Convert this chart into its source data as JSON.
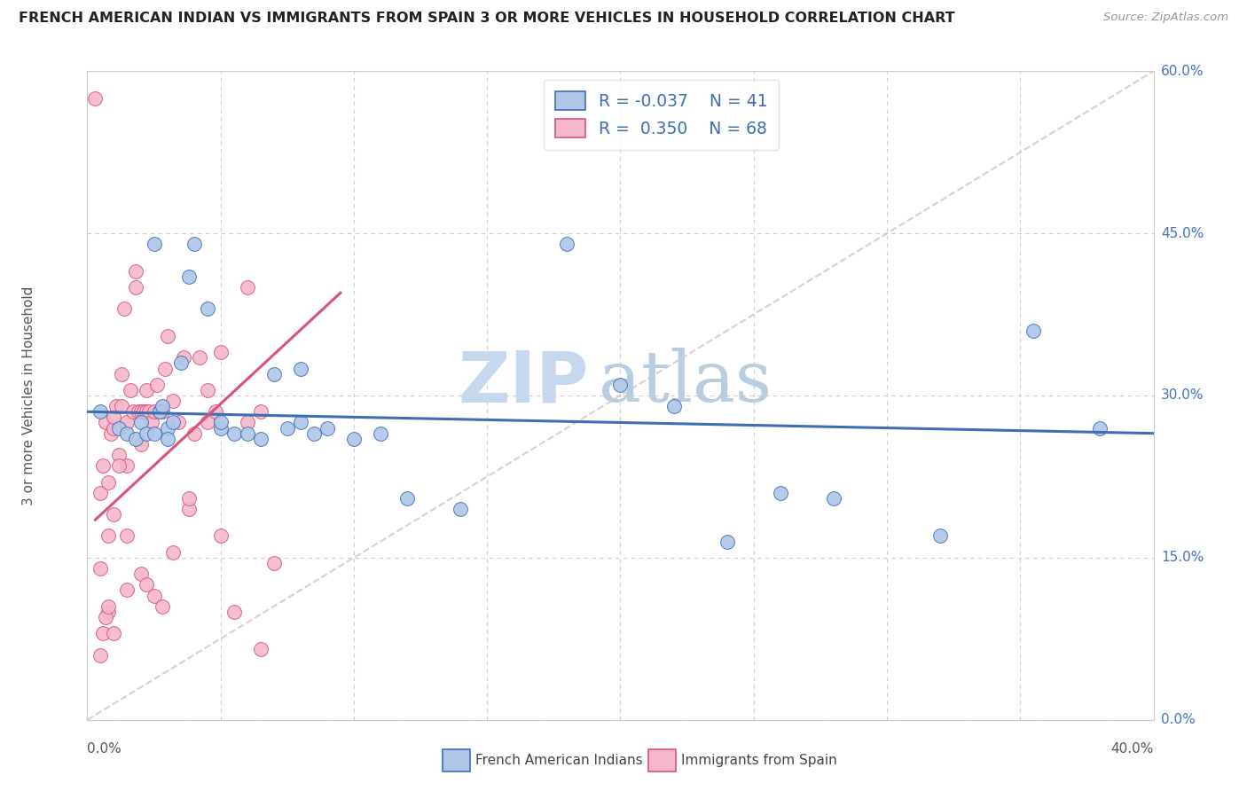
{
  "title": "FRENCH AMERICAN INDIAN VS IMMIGRANTS FROM SPAIN 3 OR MORE VEHICLES IN HOUSEHOLD CORRELATION CHART",
  "source": "Source: ZipAtlas.com",
  "ylabel_label": "3 or more Vehicles in Household",
  "legend_label1": "French American Indians",
  "legend_label2": "Immigrants from Spain",
  "R1": "-0.037",
  "N1": "41",
  "R2": "0.350",
  "N2": "68",
  "color1": "#aec6e8",
  "color2": "#f4b8ca",
  "line1_color": "#3d6eb5",
  "line2_color": "#d9527a",
  "diagonal_color": "#d8bfc8",
  "watermark_zip": "ZIP",
  "watermark_atlas": "atlas",
  "xmin": 0.0,
  "xmax": 0.4,
  "ymin": 0.0,
  "ymax": 0.6,
  "blue_points_x": [
    0.005,
    0.012,
    0.015,
    0.018,
    0.02,
    0.022,
    0.025,
    0.027,
    0.028,
    0.03,
    0.032,
    0.035,
    0.038,
    0.04,
    0.045,
    0.05,
    0.055,
    0.06,
    0.065,
    0.07,
    0.075,
    0.08,
    0.085,
    0.09,
    0.1,
    0.11,
    0.12,
    0.14,
    0.18,
    0.2,
    0.22,
    0.24,
    0.26,
    0.28,
    0.32,
    0.355,
    0.38,
    0.025,
    0.03,
    0.05,
    0.08
  ],
  "blue_points_y": [
    0.285,
    0.27,
    0.265,
    0.26,
    0.275,
    0.265,
    0.265,
    0.285,
    0.29,
    0.27,
    0.275,
    0.33,
    0.41,
    0.44,
    0.38,
    0.27,
    0.265,
    0.265,
    0.26,
    0.32,
    0.27,
    0.325,
    0.265,
    0.27,
    0.26,
    0.265,
    0.205,
    0.195,
    0.44,
    0.31,
    0.29,
    0.165,
    0.21,
    0.205,
    0.17,
    0.36,
    0.27,
    0.44,
    0.26,
    0.275,
    0.275
  ],
  "pink_points_x": [
    0.003,
    0.005,
    0.005,
    0.006,
    0.007,
    0.008,
    0.008,
    0.009,
    0.01,
    0.01,
    0.011,
    0.012,
    0.013,
    0.013,
    0.014,
    0.015,
    0.015,
    0.016,
    0.017,
    0.018,
    0.018,
    0.019,
    0.02,
    0.02,
    0.021,
    0.022,
    0.022,
    0.023,
    0.024,
    0.025,
    0.026,
    0.027,
    0.028,
    0.029,
    0.03,
    0.032,
    0.034,
    0.036,
    0.038,
    0.04,
    0.042,
    0.045,
    0.048,
    0.05,
    0.055,
    0.06,
    0.065,
    0.07,
    0.008,
    0.01,
    0.012,
    0.015,
    0.015,
    0.02,
    0.022,
    0.025,
    0.028,
    0.032,
    0.038,
    0.045,
    0.05,
    0.06,
    0.065,
    0.005,
    0.006,
    0.007,
    0.008,
    0.01
  ],
  "pink_points_y": [
    0.575,
    0.14,
    0.21,
    0.235,
    0.275,
    0.22,
    0.17,
    0.265,
    0.27,
    0.28,
    0.29,
    0.245,
    0.32,
    0.29,
    0.38,
    0.275,
    0.235,
    0.305,
    0.285,
    0.415,
    0.4,
    0.285,
    0.285,
    0.255,
    0.285,
    0.305,
    0.285,
    0.285,
    0.275,
    0.285,
    0.31,
    0.285,
    0.285,
    0.325,
    0.355,
    0.295,
    0.275,
    0.335,
    0.195,
    0.265,
    0.335,
    0.275,
    0.285,
    0.17,
    0.1,
    0.275,
    0.285,
    0.145,
    0.1,
    0.19,
    0.235,
    0.17,
    0.12,
    0.135,
    0.125,
    0.115,
    0.105,
    0.155,
    0.205,
    0.305,
    0.34,
    0.4,
    0.065,
    0.06,
    0.08,
    0.095,
    0.105,
    0.08
  ],
  "blue_trend_x": [
    0.0,
    0.4
  ],
  "blue_trend_y": [
    0.285,
    0.265
  ],
  "pink_trend_x": [
    0.003,
    0.095
  ],
  "pink_trend_y": [
    0.185,
    0.395
  ]
}
